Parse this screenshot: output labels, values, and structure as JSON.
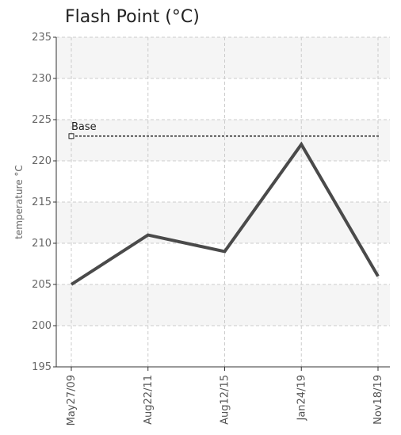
{
  "chart_data": {
    "type": "line",
    "title": "Flash Point (°C)",
    "y_label": "temperature °C",
    "categories": [
      "May27/09",
      "Aug22/11",
      "Aug12/15",
      "Jan24/19",
      "Nov18/19"
    ],
    "series": [
      {
        "name": null,
        "color": "#4a4a4a",
        "values": [
          205,
          211,
          209,
          222,
          206
        ]
      }
    ],
    "reference_line": {
      "label": "Base",
      "value": 223,
      "color": "#222"
    },
    "ylim": [
      195,
      235
    ],
    "yticks": [
      195,
      200,
      205,
      210,
      215,
      220,
      225,
      230,
      235
    ],
    "grid": true
  }
}
